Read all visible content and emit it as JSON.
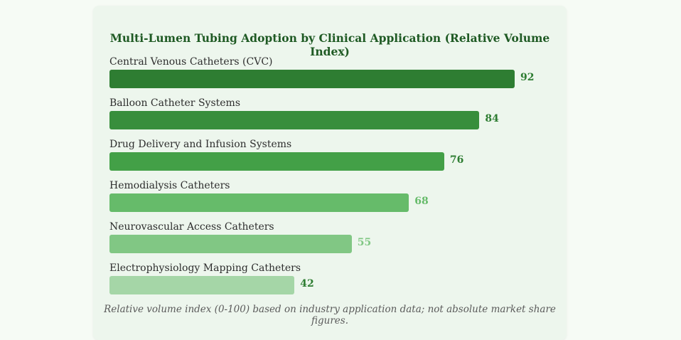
{
  "chart_data": {
    "type": "bar",
    "orientation": "horizontal",
    "title": "Multi-Lumen Tubing Adoption by Clinical Application (Relative Volume Index)",
    "categories": [
      "Central Venous Catheters (CVC)",
      "Balloon Catheter Systems",
      "Drug Delivery and Infusion Systems",
      "Hemodialysis Catheters",
      "Neurovascular Access Catheters",
      "Electrophysiology Mapping Catheters"
    ],
    "values": [
      92,
      84,
      76,
      68,
      55,
      42
    ],
    "value_labels": [
      "92",
      "84",
      "76",
      "68",
      "55",
      "42"
    ],
    "bar_colors": [
      "#2e7d32",
      "#388e3c",
      "#43a047",
      "#66bb6a",
      "#81c784",
      "#a5d6a7"
    ],
    "value_label_colors": [
      "#2e7d32",
      "#2e7d32",
      "#2e7d32",
      "#66bb6a",
      "#81c784",
      "#2e7d32"
    ],
    "xlim": [
      0,
      100
    ],
    "grid": false,
    "legend": "none"
  },
  "footnote": "Relative volume index (0-100) based on industry application data; not absolute market share figures."
}
